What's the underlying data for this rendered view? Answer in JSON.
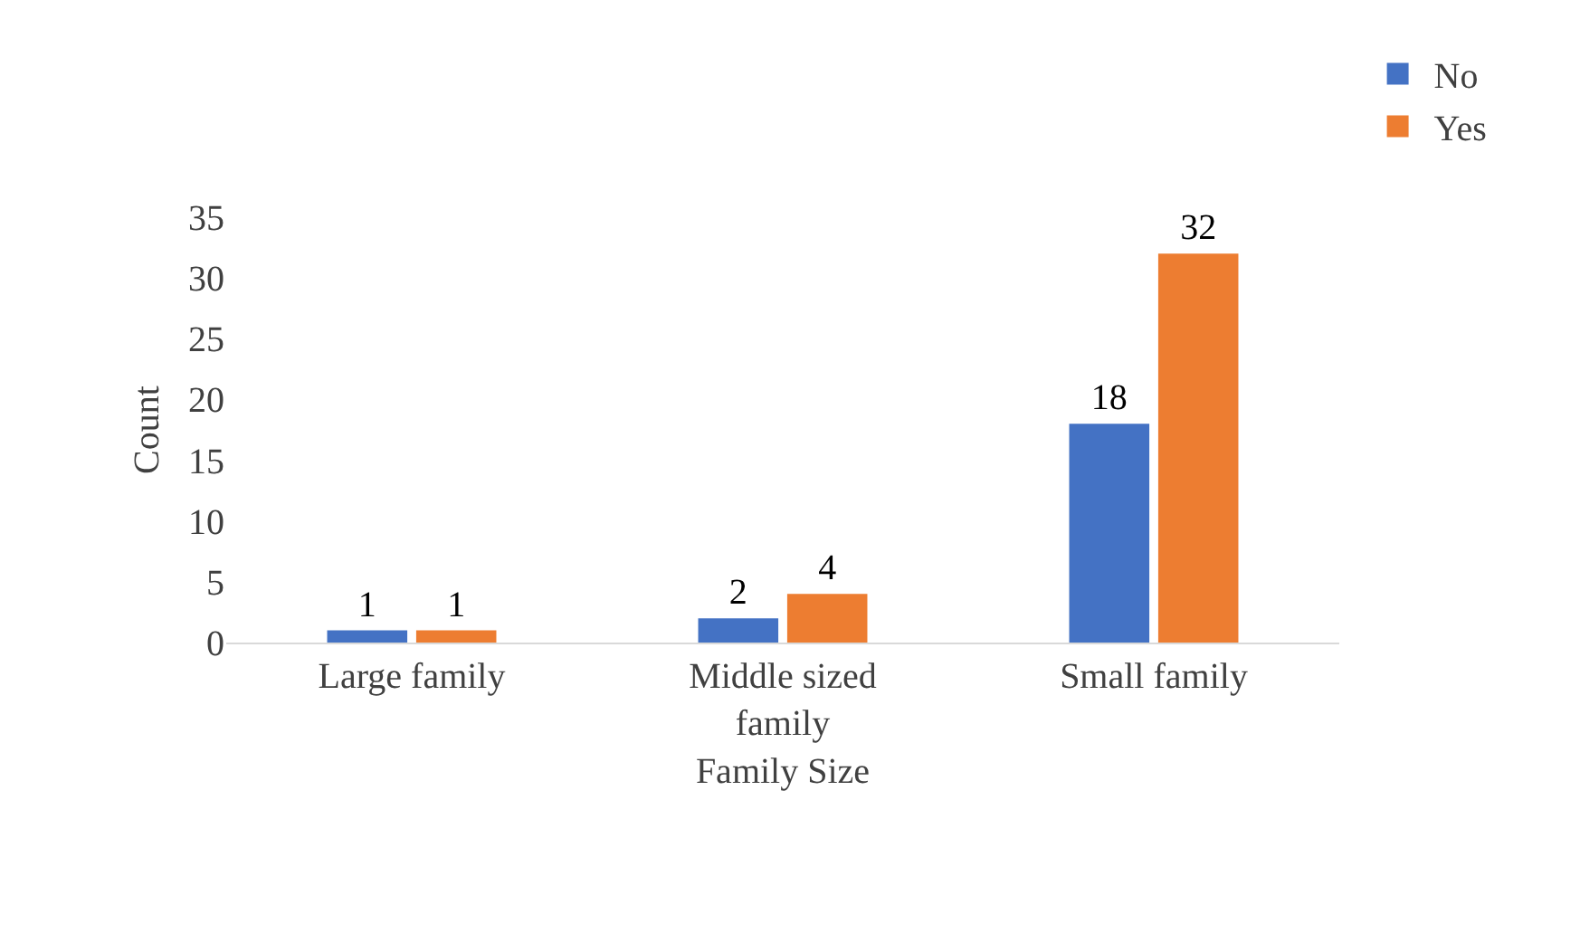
{
  "chart_data": {
    "type": "bar",
    "xlabel": "Family Size",
    "ylabel": "Count",
    "categories": [
      "Large family",
      "Middle sized family",
      "Small family"
    ],
    "series": [
      {
        "name": "No",
        "color": "#4472c4",
        "values": [
          1,
          2,
          18
        ]
      },
      {
        "name": "Yes",
        "color": "#ed7d31",
        "values": [
          1,
          4,
          32
        ]
      }
    ],
    "ylim": [
      0,
      35
    ],
    "yticks": [
      0,
      5,
      10,
      15,
      20,
      25,
      30,
      35
    ],
    "grid": false,
    "legend": "top right",
    "data_labels": true
  }
}
